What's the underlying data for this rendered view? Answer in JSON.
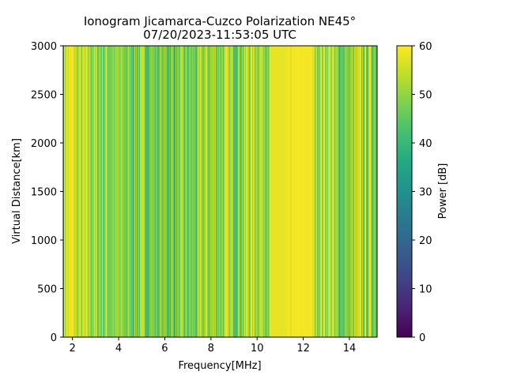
{
  "chart_data": {
    "type": "heatmap",
    "title": "Ionogram Jicamarca-Cuzco Polarization NE45°",
    "subtitle": "07/20/2023-11:53:05 UTC",
    "xlabel": "Frequency[MHz]",
    "ylabel": "Virtual Distance[km]",
    "xlim": [
      1.6,
      15.2
    ],
    "ylim": [
      0,
      3000
    ],
    "xticks": [
      2,
      4,
      6,
      8,
      10,
      12,
      14
    ],
    "yticks": [
      0,
      500,
      1000,
      1500,
      2000,
      2500,
      3000
    ],
    "colorbar": {
      "label": "Power [dB]",
      "range": [
        0,
        60
      ],
      "ticks": [
        0,
        10,
        20,
        30,
        40,
        50,
        60
      ],
      "colormap": "viridis"
    },
    "frequency_bands_power_db": [
      {
        "from": 1.6,
        "to": 2.1,
        "power": 57
      },
      {
        "from": 2.1,
        "to": 2.9,
        "power": 52
      },
      {
        "from": 2.9,
        "to": 3.8,
        "power": 50
      },
      {
        "from": 3.8,
        "to": 5.5,
        "power": 48
      },
      {
        "from": 5.5,
        "to": 7.5,
        "power": 46
      },
      {
        "from": 7.5,
        "to": 9.5,
        "power": 50
      },
      {
        "from": 9.5,
        "to": 10.5,
        "power": 54
      },
      {
        "from": 10.5,
        "to": 11.3,
        "power": 58
      },
      {
        "from": 11.3,
        "to": 12.4,
        "power": 59
      },
      {
        "from": 12.4,
        "to": 13.3,
        "power": 54
      },
      {
        "from": 13.3,
        "to": 14.2,
        "power": 47
      },
      {
        "from": 14.2,
        "to": 15.2,
        "power": 50
      }
    ]
  }
}
